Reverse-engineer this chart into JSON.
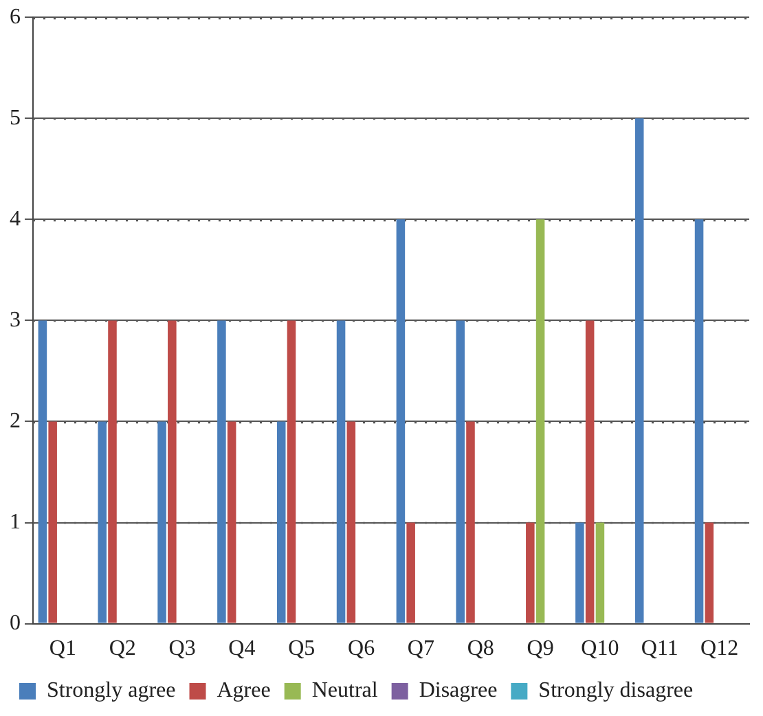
{
  "chart_data": {
    "type": "bar",
    "categories": [
      "Q1",
      "Q2",
      "Q3",
      "Q4",
      "Q5",
      "Q6",
      "Q7",
      "Q8",
      "Q9",
      "Q10",
      "Q11",
      "Q12"
    ],
    "series": [
      {
        "name": "Strongly agree",
        "color": "#4a7ebb",
        "values": [
          3,
          2,
          2,
          3,
          2,
          3,
          4,
          3,
          0,
          1,
          5,
          4
        ]
      },
      {
        "name": "Agree",
        "color": "#be4b48",
        "values": [
          2,
          3,
          3,
          2,
          3,
          2,
          1,
          2,
          1,
          3,
          0,
          1
        ]
      },
      {
        "name": "Neutral",
        "color": "#98b954",
        "values": [
          0,
          0,
          0,
          0,
          0,
          0,
          0,
          0,
          4,
          1,
          0,
          0
        ]
      },
      {
        "name": "Disagree",
        "color": "#7d60a0",
        "values": [
          0,
          0,
          0,
          0,
          0,
          0,
          0,
          0,
          0,
          0,
          0,
          0
        ]
      },
      {
        "name": "Strongly disagree",
        "color": "#46aac5",
        "values": [
          0,
          0,
          0,
          0,
          0,
          0,
          0,
          0,
          0,
          0,
          0,
          0
        ]
      }
    ],
    "ylim": [
      0,
      6
    ],
    "yticks": [
      0,
      1,
      2,
      3,
      4,
      5,
      6
    ],
    "grid": "y",
    "legend": "bottom"
  }
}
